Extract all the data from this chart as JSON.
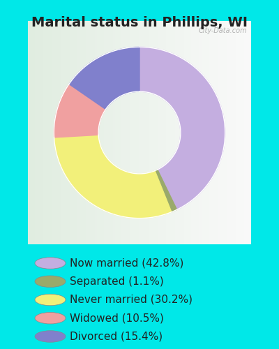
{
  "title": "Marital status in Phillips, WI",
  "outer_bg_color": "#00e8e8",
  "chart_bg_gradient_left": "#d4ede2",
  "chart_bg_gradient_right": "#eef5f0",
  "slices": [
    {
      "label": "Now married (42.8%)",
      "value": 42.8,
      "color": "#c4aee0"
    },
    {
      "label": "Separated (1.1%)",
      "value": 1.1,
      "color": "#9aaa6a"
    },
    {
      "label": "Never married (30.2%)",
      "value": 30.2,
      "color": "#f2f07a"
    },
    {
      "label": "Widowed (10.5%)",
      "value": 10.5,
      "color": "#f0a0a0"
    },
    {
      "label": "Divorced (15.4%)",
      "value": 15.4,
      "color": "#8080cc"
    }
  ],
  "legend_labels": [
    "Now married (42.8%)",
    "Separated (1.1%)",
    "Never married (30.2%)",
    "Widowed (10.5%)",
    "Divorced (15.4%)"
  ],
  "legend_colors": [
    "#c4aee0",
    "#9aaa6a",
    "#f2f07a",
    "#f0a0a0",
    "#8080cc"
  ],
  "watermark": "City-Data.com",
  "title_fontsize": 14,
  "legend_fontsize": 11,
  "donut_width": 0.52
}
